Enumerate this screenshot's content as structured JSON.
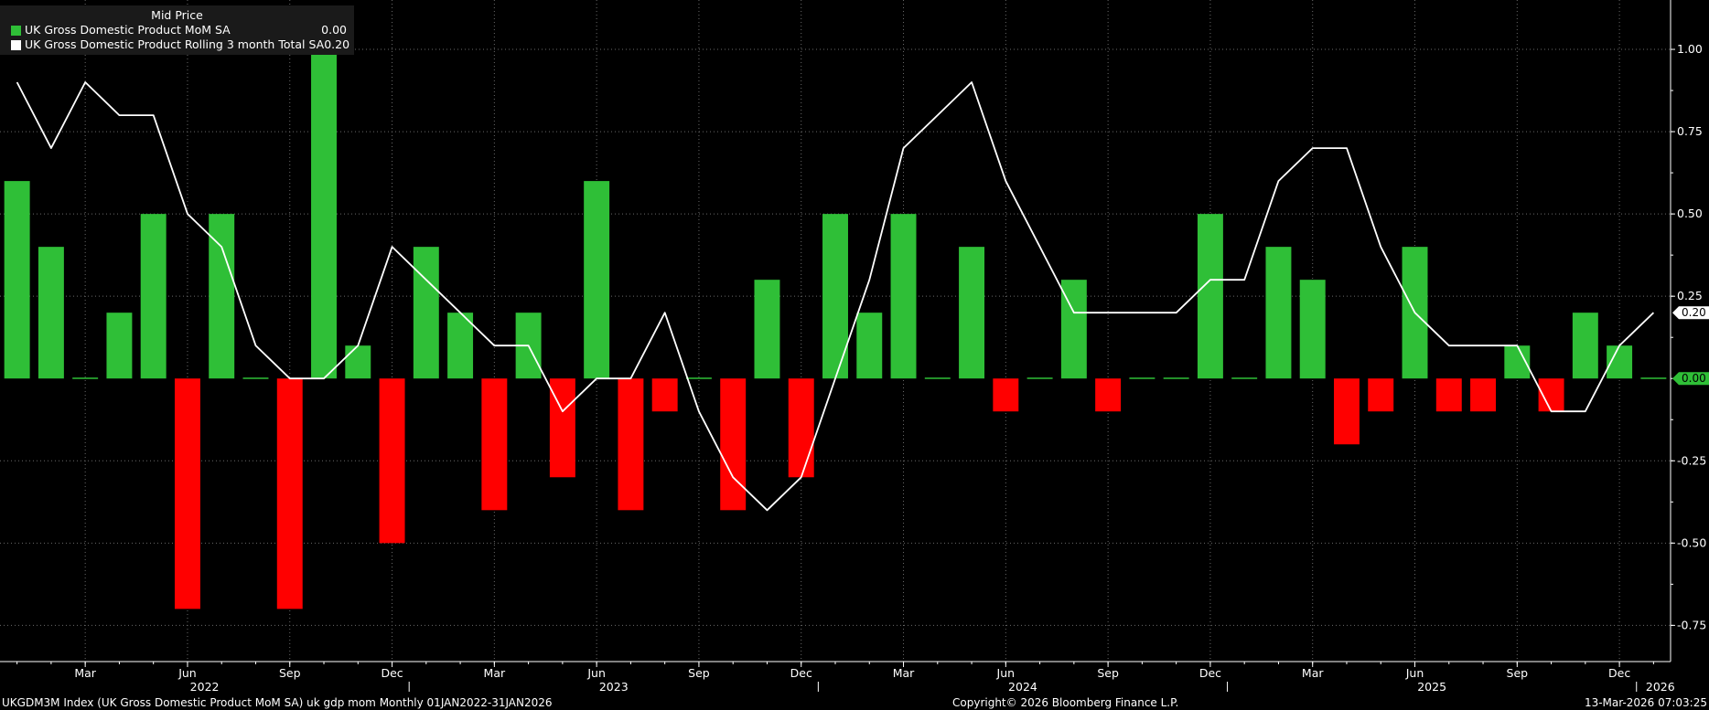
{
  "chart_data": {
    "type": "bar",
    "legend_title": "Mid Price",
    "legend_placement": "top-left",
    "grid": true,
    "x": [
      "2022-01",
      "2022-02",
      "2022-03",
      "2022-04",
      "2022-05",
      "2022-06",
      "2022-07",
      "2022-08",
      "2022-09",
      "2022-10",
      "2022-11",
      "2022-12",
      "2023-01",
      "2023-02",
      "2023-03",
      "2023-04",
      "2023-05",
      "2023-06",
      "2023-07",
      "2023-08",
      "2023-09",
      "2023-10",
      "2023-11",
      "2023-12",
      "2024-01",
      "2024-02",
      "2024-03",
      "2024-04",
      "2024-05",
      "2024-06",
      "2024-07",
      "2024-08",
      "2024-09",
      "2024-10",
      "2024-11",
      "2024-12",
      "2025-01",
      "2025-02",
      "2025-03",
      "2025-04",
      "2025-05",
      "2025-06",
      "2025-07",
      "2025-08",
      "2025-09",
      "2025-10",
      "2025-11",
      "2025-12",
      "2026-01"
    ],
    "series": [
      {
        "name": "UK Gross Domestic Product MoM SA",
        "type": "bar",
        "last_value": "0.00",
        "color_positive": "#2fbf37",
        "color_negative": "#ff0000",
        "values": [
          0.6,
          0.4,
          0.0,
          0.2,
          0.5,
          -0.7,
          0.5,
          0.0,
          -0.7,
          1.0,
          0.1,
          -0.5,
          0.4,
          0.2,
          -0.4,
          0.2,
          -0.3,
          0.6,
          -0.4,
          -0.1,
          0.0,
          -0.4,
          0.3,
          -0.3,
          0.5,
          0.2,
          0.5,
          0.0,
          0.4,
          -0.1,
          0.0,
          0.3,
          -0.1,
          0.0,
          0.0,
          0.5,
          0.0,
          0.4,
          0.3,
          -0.2,
          -0.1,
          0.4,
          -0.1,
          -0.1,
          0.1,
          -0.1,
          0.2,
          0.1,
          0.0
        ]
      },
      {
        "name": "UK Gross Domestic Product Rolling 3 month Total SA",
        "type": "line",
        "last_value": "0.20",
        "color": "#ffffff",
        "values": [
          0.9,
          0.7,
          0.9,
          0.8,
          0.8,
          0.5,
          0.4,
          0.1,
          0.0,
          0.0,
          0.1,
          0.4,
          0.3,
          0.2,
          0.1,
          0.1,
          -0.1,
          0.0,
          0.0,
          0.2,
          -0.1,
          -0.3,
          -0.4,
          -0.3,
          0.0,
          0.3,
          0.7,
          0.8,
          0.9,
          0.6,
          0.4,
          0.2,
          0.2,
          0.2,
          0.2,
          0.3,
          0.3,
          0.6,
          0.7,
          0.7,
          0.4,
          0.2,
          0.1,
          0.1,
          0.1,
          -0.1,
          -0.1,
          0.1,
          0.2
        ]
      }
    ],
    "ylim": [
      -0.86,
      1.15
    ],
    "y_ticks": [
      1.0,
      0.75,
      0.5,
      0.25,
      -0.25,
      -0.5,
      -0.75
    ],
    "y_tick_labels": [
      "1.00",
      "0.75",
      "0.50",
      "0.25",
      "-0.25",
      "-0.50",
      "-0.75"
    ],
    "month_ticks": [
      {
        "label": "Mar",
        "index": 2
      },
      {
        "label": "Jun",
        "index": 5
      },
      {
        "label": "Sep",
        "index": 8
      },
      {
        "label": "Dec",
        "index": 11
      },
      {
        "label": "Mar",
        "index": 14
      },
      {
        "label": "Jun",
        "index": 17
      },
      {
        "label": "Sep",
        "index": 20
      },
      {
        "label": "Dec",
        "index": 23
      },
      {
        "label": "Mar",
        "index": 26
      },
      {
        "label": "Jun",
        "index": 29
      },
      {
        "label": "Sep",
        "index": 32
      },
      {
        "label": "Dec",
        "index": 35
      },
      {
        "label": "Mar",
        "index": 38
      },
      {
        "label": "Jun",
        "index": 41
      },
      {
        "label": "Sep",
        "index": 44
      },
      {
        "label": "Dec",
        "index": 47
      }
    ],
    "year_labels": [
      {
        "label": "2022",
        "center_index": 5.5
      },
      {
        "label": "2023",
        "center_index": 17.5
      },
      {
        "label": "2024",
        "center_index": 29.5
      },
      {
        "label": "2025",
        "center_index": 41.5
      },
      {
        "label": "2026",
        "center_index": 48.2
      }
    ],
    "year_separators": [
      11.5,
      23.5,
      35.5,
      47.5
    ],
    "value_tags": [
      {
        "label": "0.20",
        "value": 0.2,
        "fill": "#ffffff",
        "text_color": "#000000"
      },
      {
        "label": "0.00",
        "value": 0.0,
        "fill": "#2fbf37",
        "text_color": "#000000"
      }
    ]
  },
  "footer": {
    "left": "UKGDM3M Index (UK Gross Domestic Product MoM SA) uk gdp mom Monthly 01JAN2022-31JAN2026",
    "center": "Copyright© 2026 Bloomberg Finance L.P.",
    "right": "13-Mar-2026 07:03:25"
  }
}
